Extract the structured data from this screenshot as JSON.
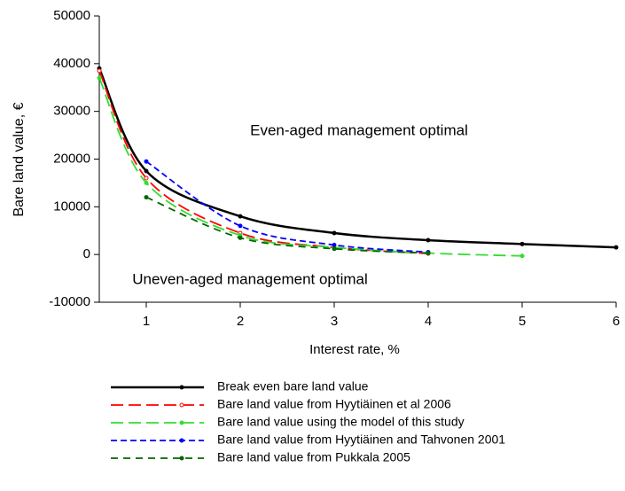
{
  "chart_data": {
    "type": "line",
    "xlabel": "Interest rate, %",
    "ylabel": "Bare land value, €",
    "annotations": [
      "Even-aged management optimal",
      "Uneven-aged management optimal"
    ],
    "x": [
      0.5,
      1,
      2,
      3,
      4,
      5,
      6
    ],
    "series": [
      {
        "name": "Break even bare land value",
        "color": "#000000",
        "values": [
          39000,
          17500,
          8000,
          4500,
          3000,
          2200,
          1500
        ]
      },
      {
        "name": "Bare land value from Hyytiäinen et al 2006",
        "color": "#ff0000",
        "values": [
          38500,
          16000,
          4500,
          1500,
          200,
          null,
          null
        ]
      },
      {
        "name": "Bare land value using the model of this study",
        "color": "#33dd33",
        "values": [
          37000,
          15000,
          4000,
          1500,
          300,
          -300,
          null
        ]
      },
      {
        "name": "Bare land value from Hyytiäinen and Tahvonen 2001",
        "color": "#0000ff",
        "values": [
          null,
          19500,
          6000,
          2000,
          500,
          null,
          null
        ]
      },
      {
        "name": "Bare land value from Pukkala 2005",
        "color": "#006600",
        "values": [
          null,
          12000,
          3500,
          1200,
          300,
          null,
          null
        ]
      }
    ],
    "xlim": [
      0.5,
      6
    ],
    "xticks": [
      1,
      2,
      3,
      4,
      5,
      6
    ],
    "ylim": [
      -10000,
      50000
    ],
    "yticks": [
      -10000,
      0,
      10000,
      20000,
      30000,
      40000,
      50000
    ],
    "grid": false,
    "legend": "bottom"
  }
}
